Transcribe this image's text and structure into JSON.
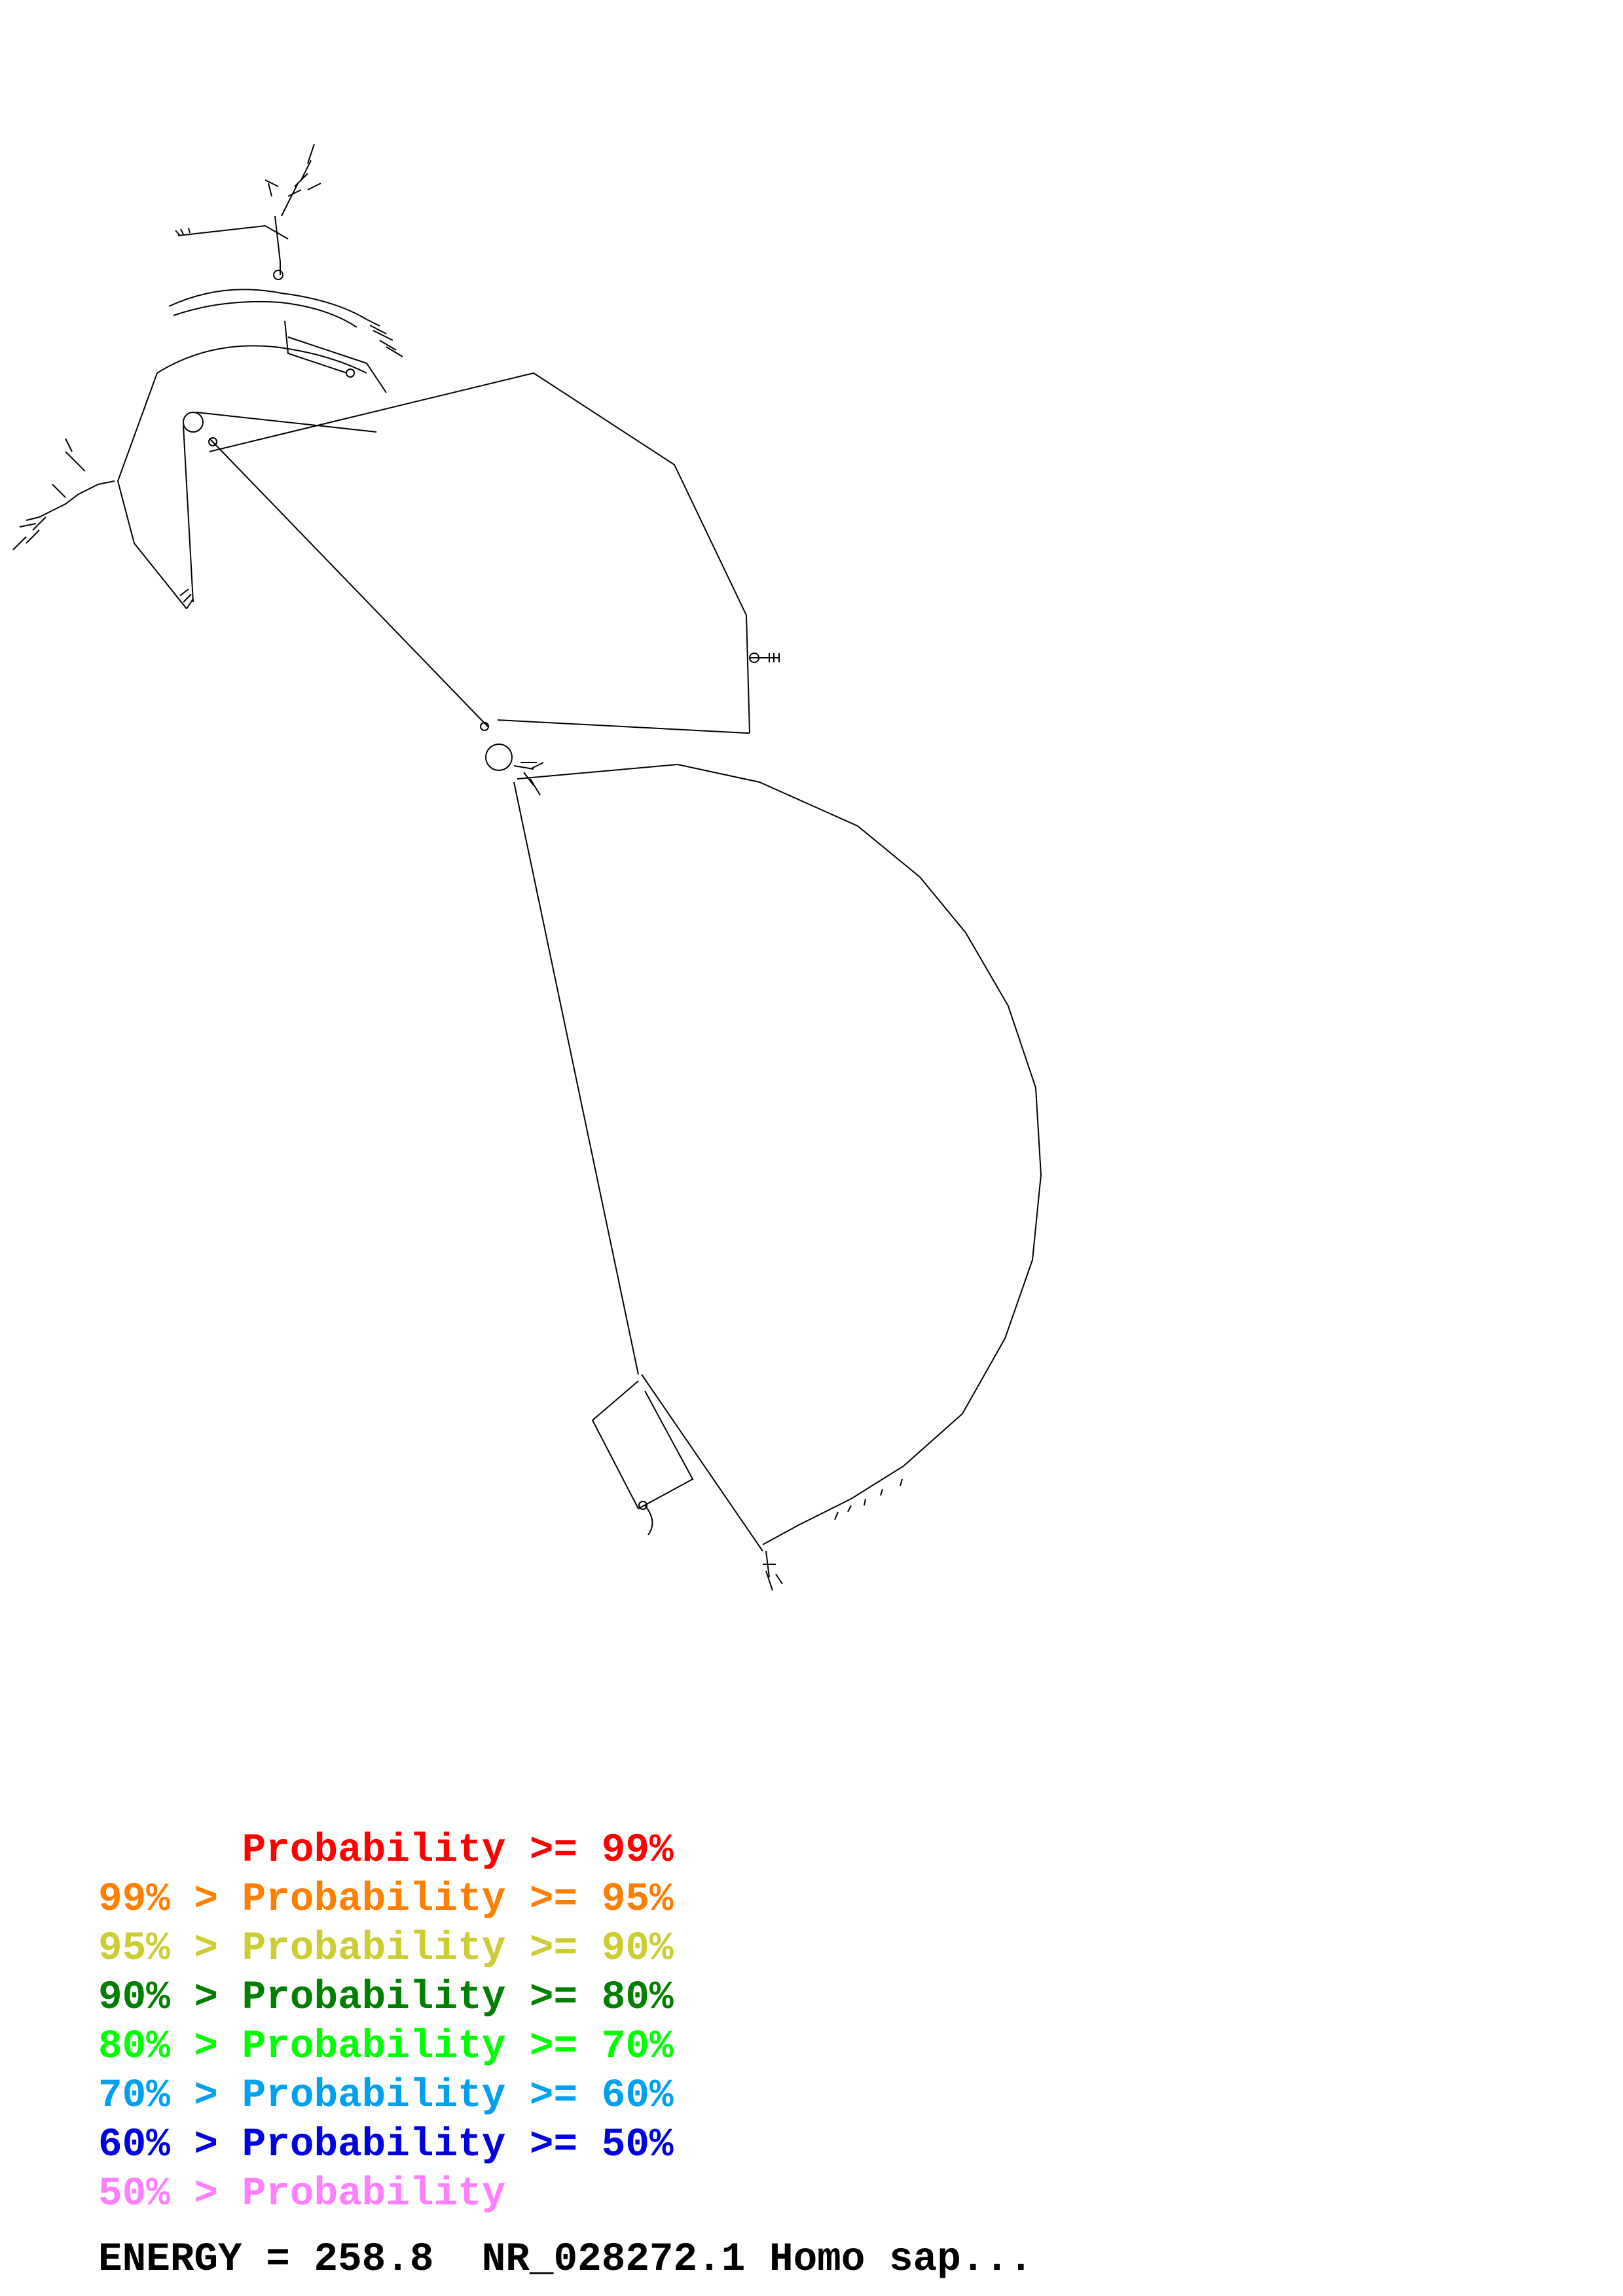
{
  "legend": {
    "rows": [
      {
        "prefix": "",
        "label": "Probability",
        "suffix": ">= 99%",
        "color": "#ff0000"
      },
      {
        "prefix": "99% >",
        "label": "Probability",
        "suffix": ">= 95%",
        "color": "#ff7f00"
      },
      {
        "prefix": "95% >",
        "label": "Probability",
        "suffix": ">= 90%",
        "color": "#cccc33"
      },
      {
        "prefix": "90% >",
        "label": "Probability",
        "suffix": ">= 80%",
        "color": "#007f00"
      },
      {
        "prefix": "80% >",
        "label": "Probability",
        "suffix": ">= 70%",
        "color": "#00ff00"
      },
      {
        "prefix": "70% >",
        "label": "Probability",
        "suffix": ">= 60%",
        "color": "#00a0f0"
      },
      {
        "prefix": "60% >",
        "label": "Probability",
        "suffix": ">= 50%",
        "color": "#0000e0"
      },
      {
        "prefix": "50% >",
        "label": "Probability",
        "suffix": "",
        "color": "#ff7fff"
      }
    ]
  },
  "footer": {
    "energy_text": "ENERGY = 258.8  NR_028272.1 Homo sap..."
  },
  "colors": {
    "backbone": "#000000",
    "background": "#ffffff"
  }
}
